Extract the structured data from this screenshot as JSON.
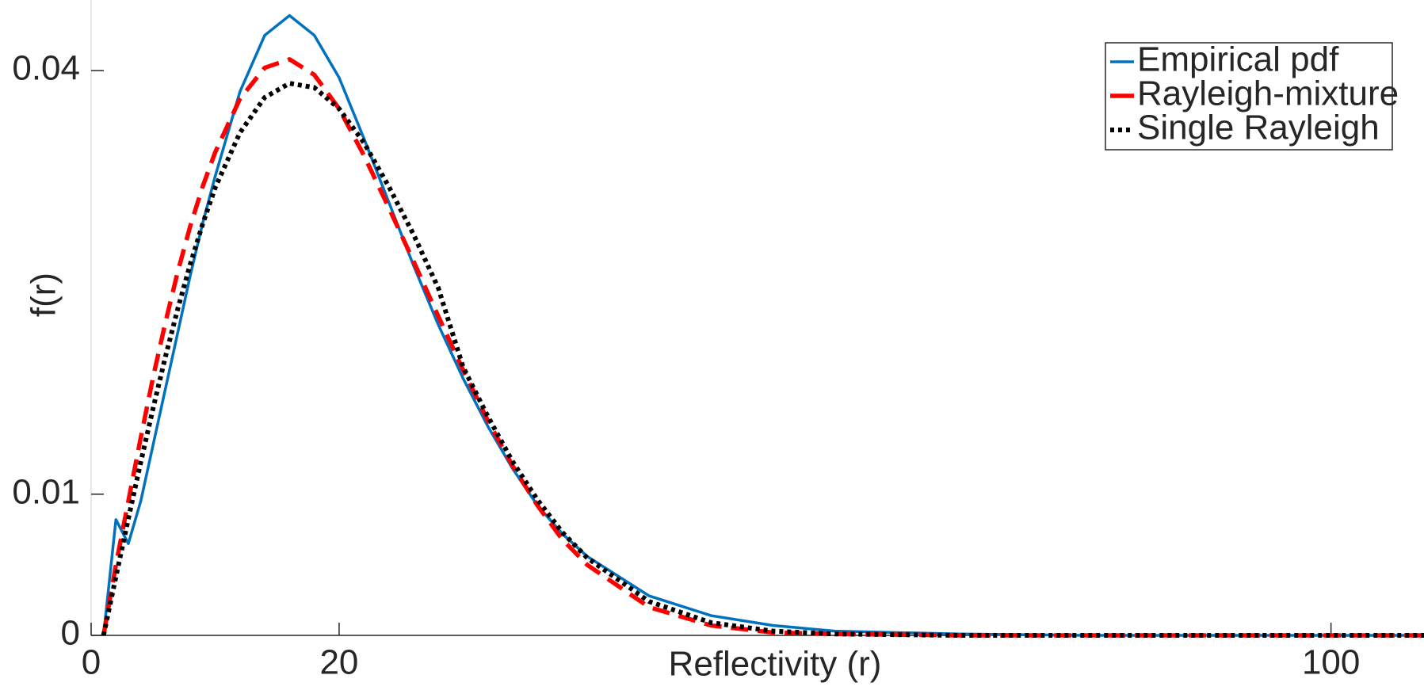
{
  "chart_data": {
    "type": "line",
    "x_label": "Reflectivity (r)",
    "y_label": "f(r)",
    "x": [
      1,
      2,
      3,
      4,
      5,
      6,
      7,
      8,
      9,
      10,
      12,
      14,
      16,
      18,
      20,
      22,
      24,
      26,
      28,
      30,
      32,
      34,
      36,
      38,
      40,
      45,
      50,
      55,
      60,
      70,
      80,
      90,
      107.5
    ],
    "series": [
      {
        "name": "Empirical pdf",
        "color": "#0072bd",
        "line_style": "solid",
        "values": [
          0,
          0.0082,
          0.0065,
          0.0095,
          0.0135,
          0.0175,
          0.0215,
          0.0255,
          0.0292,
          0.0325,
          0.0385,
          0.0425,
          0.0439,
          0.0425,
          0.0395,
          0.0352,
          0.0307,
          0.0262,
          0.022,
          0.0182,
          0.0148,
          0.0118,
          0.0092,
          0.0072,
          0.0056,
          0.0028,
          0.0014,
          0.0007,
          0.0003,
          0.0001,
          0,
          0,
          0
        ]
      },
      {
        "name": "Rayleigh-mixture",
        "color": "#ff0000",
        "line_style": "dashed",
        "values": [
          0,
          0.005,
          0.0095,
          0.014,
          0.0183,
          0.0222,
          0.0258,
          0.029,
          0.0318,
          0.0342,
          0.038,
          0.0402,
          0.0408,
          0.0397,
          0.0373,
          0.034,
          0.0303,
          0.0265,
          0.0226,
          0.0188,
          0.0152,
          0.012,
          0.0092,
          0.0068,
          0.005,
          0.002,
          0.0007,
          0.0002,
          0.0001,
          0,
          0,
          0,
          0
        ]
      },
      {
        "name": "Single Rayleigh",
        "color": "#000000",
        "line_style": "dotted",
        "values": [
          0,
          0.00415,
          0.00826,
          0.01226,
          0.0161,
          0.01976,
          0.02317,
          0.02631,
          0.02915,
          0.0317,
          0.0356,
          0.0381,
          0.0391,
          0.0388,
          0.0373,
          0.0349,
          0.0318,
          0.0284,
          0.0246,
          0.019,
          0.0155,
          0.0123,
          0.0096,
          0.0073,
          0.0055,
          0.0024,
          0.0009,
          0.0003,
          0.0001,
          0,
          0,
          0,
          0
        ]
      }
    ],
    "xlim": [
      0,
      107.5
    ],
    "ylim": [
      0,
      0.045
    ],
    "xticks": [
      0,
      20,
      100
    ],
    "yticks": [
      0,
      0.01,
      0.04
    ],
    "legend": "upper right",
    "grid": false
  }
}
